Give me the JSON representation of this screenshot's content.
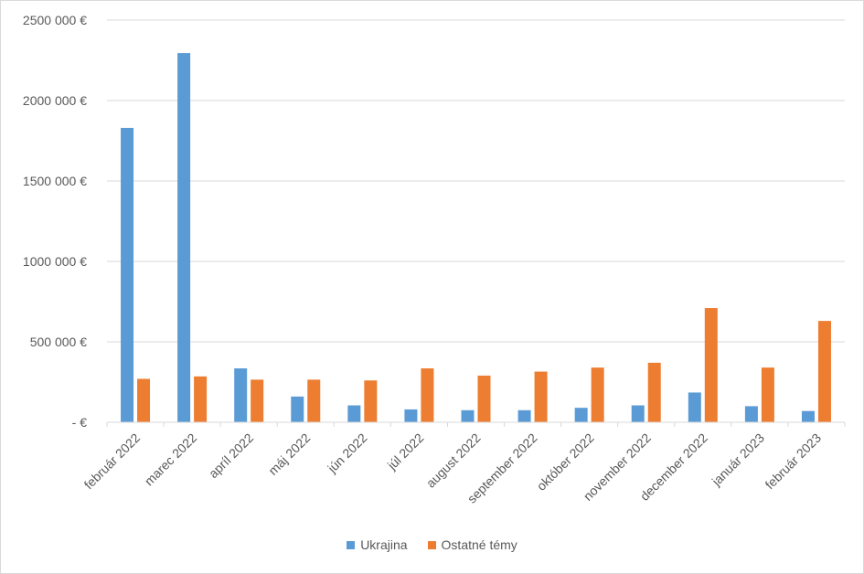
{
  "chart_data": {
    "type": "bar",
    "categories": [
      "február 2022",
      "marec 2022",
      "apríl 2022",
      "máj 2022",
      "jún 2022",
      "júl 2022",
      "august 2022",
      "september 2022",
      "október 2022",
      "november 2022",
      "december 2022",
      "január 2023",
      "február 2023"
    ],
    "series": [
      {
        "name": "Ukrajina",
        "color": "#5b9bd5",
        "values": [
          1830000,
          2295000,
          335000,
          160000,
          105000,
          80000,
          75000,
          75000,
          90000,
          105000,
          185000,
          100000,
          70000
        ]
      },
      {
        "name": "Ostatné témy",
        "color": "#ed7d31",
        "values": [
          270000,
          285000,
          265000,
          265000,
          260000,
          335000,
          290000,
          315000,
          340000,
          370000,
          710000,
          340000,
          630000
        ]
      }
    ],
    "ylim": [
      0,
      2500000
    ],
    "yticks": [
      0,
      500000,
      1000000,
      1500000,
      2000000,
      2500000
    ],
    "ytick_labels": [
      "-  €",
      "500 000 €",
      "1000 000 €",
      "1500 000 €",
      "2000 000 €",
      "2500 000 €"
    ],
    "grid": true,
    "legend_position": "bottom",
    "title": "",
    "xlabel": "",
    "ylabel": ""
  }
}
